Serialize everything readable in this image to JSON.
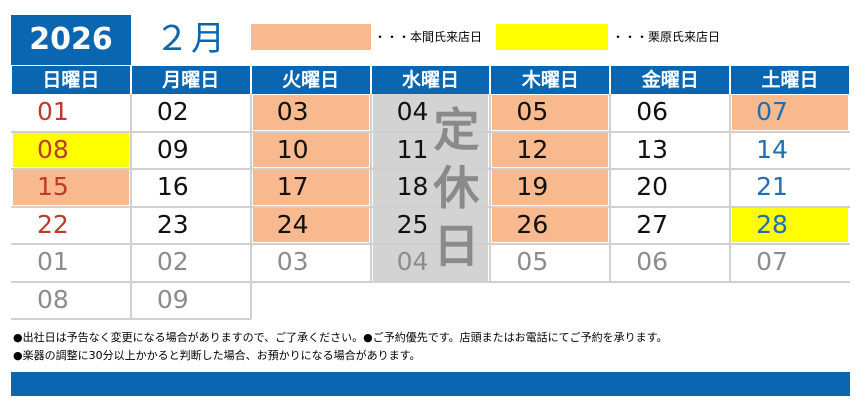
{
  "header": {
    "year": "2026",
    "month": "２月"
  },
  "legend": [
    {
      "label": "・・・本間氏来店日",
      "color": "#f8b98e"
    },
    {
      "label": "・・・栗原氏来店日",
      "color": "#ffff00"
    }
  ],
  "weekdays": [
    "日曜日",
    "月曜日",
    "火曜日",
    "水曜日",
    "木曜日",
    "金曜日",
    "土曜日"
  ],
  "colors": {
    "accent": "#0b66b2",
    "sunday": "#c0392b",
    "saturday": "#1f6fb2",
    "normal": "#111111",
    "outside": "#8c8c8c",
    "honma": "#f8b98e",
    "kurihara": "#ffff00",
    "closed": "#d3d3d3"
  },
  "weeks": [
    [
      {
        "d": "01",
        "t": "sun"
      },
      {
        "d": "02",
        "t": "norm"
      },
      {
        "d": "03",
        "t": "norm",
        "hl": "honma"
      },
      {
        "d": "04",
        "t": "norm"
      },
      {
        "d": "05",
        "t": "norm",
        "hl": "honma"
      },
      {
        "d": "06",
        "t": "norm"
      },
      {
        "d": "07",
        "t": "sat",
        "hl": "honma"
      }
    ],
    [
      {
        "d": "08",
        "t": "sun",
        "hl": "kurihara"
      },
      {
        "d": "09",
        "t": "norm"
      },
      {
        "d": "10",
        "t": "norm",
        "hl": "honma"
      },
      {
        "d": "11",
        "t": "norm"
      },
      {
        "d": "12",
        "t": "norm",
        "hl": "honma"
      },
      {
        "d": "13",
        "t": "norm"
      },
      {
        "d": "14",
        "t": "sat"
      }
    ],
    [
      {
        "d": "15",
        "t": "sun",
        "hl": "honma"
      },
      {
        "d": "16",
        "t": "norm"
      },
      {
        "d": "17",
        "t": "norm",
        "hl": "honma"
      },
      {
        "d": "18",
        "t": "norm"
      },
      {
        "d": "19",
        "t": "norm",
        "hl": "honma"
      },
      {
        "d": "20",
        "t": "norm"
      },
      {
        "d": "21",
        "t": "sat"
      }
    ],
    [
      {
        "d": "22",
        "t": "sun"
      },
      {
        "d": "23",
        "t": "norm"
      },
      {
        "d": "24",
        "t": "norm",
        "hl": "honma"
      },
      {
        "d": "25",
        "t": "norm"
      },
      {
        "d": "26",
        "t": "norm",
        "hl": "honma"
      },
      {
        "d": "27",
        "t": "norm"
      },
      {
        "d": "28",
        "t": "sat",
        "hl": "kurihara"
      }
    ],
    [
      {
        "d": "01",
        "t": "out"
      },
      {
        "d": "02",
        "t": "out"
      },
      {
        "d": "03",
        "t": "out"
      },
      {
        "d": "04",
        "t": "out"
      },
      {
        "d": "05",
        "t": "out"
      },
      {
        "d": "06",
        "t": "out"
      },
      {
        "d": "07",
        "t": "out"
      }
    ],
    [
      {
        "d": "08",
        "t": "out"
      },
      {
        "d": "09",
        "t": "out"
      }
    ]
  ],
  "closed_day": {
    "label": [
      "定",
      "休",
      "日"
    ]
  },
  "notes": [
    "●出社日は予告なく変更になる場合がありますので、ご了承ください。●ご予約優先です。店頭またはお電話にてご予約を承ります。",
    "●楽器の調整に30分以上かかると判断した場合、お預かりになる場合があります。"
  ]
}
